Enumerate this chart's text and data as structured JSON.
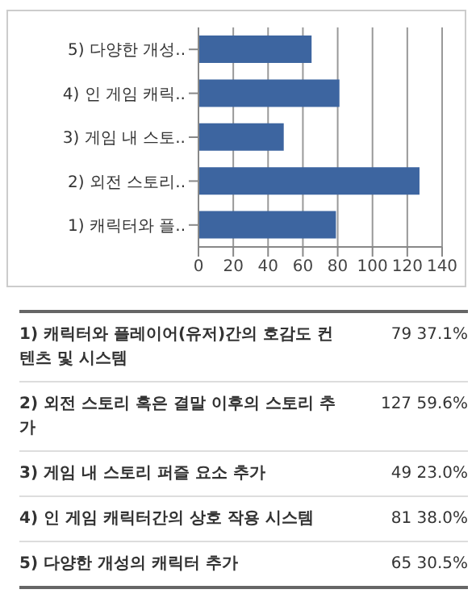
{
  "chart_data": {
    "type": "bar",
    "orientation": "horizontal",
    "categories": [
      "5) 다양한 개성..",
      "4) 인 게임 캐릭..",
      "3) 게임 내 스토..",
      "2) 외전 스토리..",
      "1) 캐릭터와 플.."
    ],
    "values": [
      65,
      81,
      49,
      127,
      79
    ],
    "color": "#3d65a0",
    "xlim": [
      0,
      140
    ],
    "xticks": [
      0,
      20,
      40,
      60,
      80,
      100,
      120,
      140
    ],
    "grid": "x",
    "annotations": [
      "1) 캐릭터와 플레이어(유저)간의 호감도 컨텐츠 및 시스템",
      "79 37.1%",
      "2) 외전 스토리 혹은 결말 이후의 스토리 추가",
      "127 59.6%",
      "3) 게임 내 스토리 퍼즐 요소 추가",
      "49 23.0%",
      "4) 인 게임 캐릭터간의 상호 작용 시스템",
      "81 38.0%",
      "5) 다양한 개성의 캐릭터 추가",
      "65 30.5%"
    ]
  }
}
